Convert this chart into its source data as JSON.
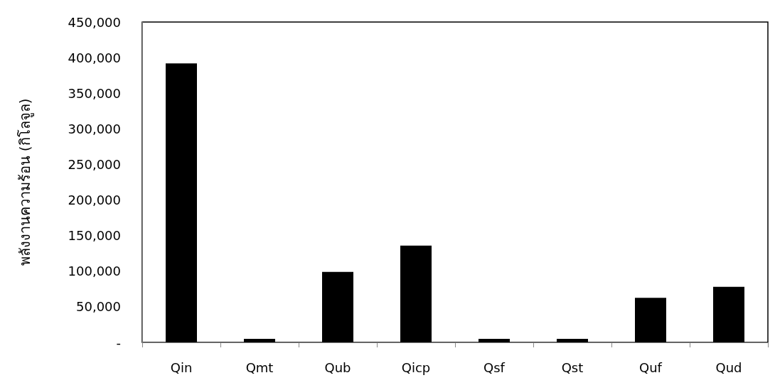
{
  "chart_data": {
    "type": "bar",
    "ylabel": "พลังงานความร้อน (กิโลจูล)",
    "categories": [
      "Qin",
      "Qmt",
      "Qub",
      "Qicp",
      "Qsf",
      "Qst",
      "Quf",
      "Qud"
    ],
    "values": [
      392000,
      5000,
      99000,
      136000,
      5000,
      5000,
      62500,
      78000
    ],
    "color": "#000000",
    "ylim": [
      0,
      450000
    ],
    "yticks": [
      {
        "value": 0,
        "label": "-"
      },
      {
        "value": 50000,
        "label": "50,000"
      },
      {
        "value": 100000,
        "label": "100,000"
      },
      {
        "value": 150000,
        "label": "150,000"
      },
      {
        "value": 200000,
        "label": "200,000"
      },
      {
        "value": 250000,
        "label": "250,000"
      },
      {
        "value": 300000,
        "label": "300,000"
      },
      {
        "value": 350000,
        "label": "350,000"
      },
      {
        "value": 400000,
        "label": "400,000"
      },
      {
        "value": 450000,
        "label": "450,000"
      }
    ],
    "grid": false
  }
}
